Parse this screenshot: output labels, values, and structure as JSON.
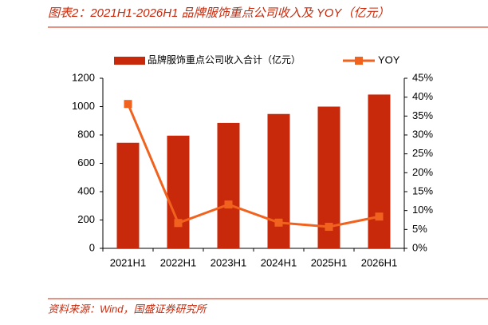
{
  "title": "图表2：2021H1-2026H1 品牌服饰重点公司收入及 YOY（亿元）",
  "source": "资料来源：Wind，国盛证券研究所",
  "chart_data": {
    "type": "bar_line",
    "categories": [
      "2021H1",
      "2022H1",
      "2023H1",
      "2024H1",
      "2025H1",
      "2026H1"
    ],
    "series": [
      {
        "name": "品牌服饰重点公司收入合计（亿元）",
        "color": "#c8290b",
        "type": "bar",
        "values": [
          745,
          795,
          885,
          948,
          1000,
          1085
        ]
      },
      {
        "name": "YOY",
        "color": "#f0621e",
        "type": "line",
        "axis": "y2",
        "values": [
          38.2,
          6.7,
          11.6,
          6.8,
          5.7,
          8.4
        ]
      }
    ],
    "ylim": [
      0,
      1200
    ],
    "yticks": [
      0,
      200,
      400,
      600,
      800,
      1000,
      1200
    ],
    "y2lim": [
      0,
      45
    ],
    "y2ticks": [
      {
        "value": 0,
        "label": "0%"
      },
      {
        "value": 5,
        "label": "5%"
      },
      {
        "value": 10,
        "label": "10%"
      },
      {
        "value": 15,
        "label": "15%"
      },
      {
        "value": 20,
        "label": "20%"
      },
      {
        "value": 25,
        "label": "25%"
      },
      {
        "value": 30,
        "label": "30%"
      },
      {
        "value": 35,
        "label": "35%"
      },
      {
        "value": 40,
        "label": "40%"
      },
      {
        "value": 45,
        "label": "45%"
      }
    ],
    "legend": "top",
    "grid": false
  }
}
